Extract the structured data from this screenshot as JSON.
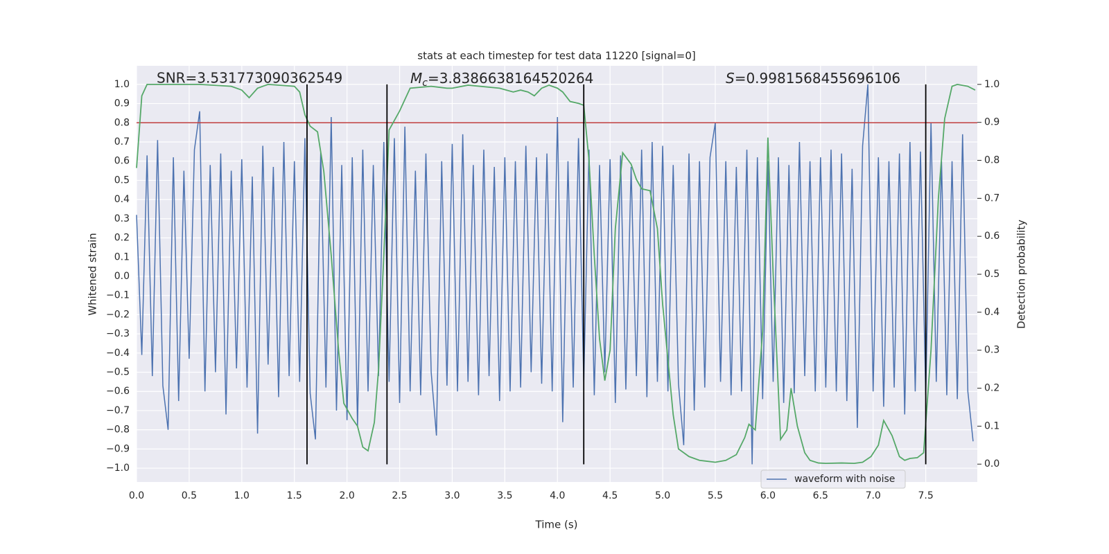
{
  "chart_data": {
    "type": "line",
    "title": "stats at each timestep for test data 11220 [signal=0]",
    "xlabel": "Time (s)",
    "ylabel": "Whitened strain",
    "y2label": "Detection probability",
    "grid": true,
    "legend": "lower right",
    "xlim": [
      0,
      7.99
    ],
    "ylim": [
      -1.072,
      1.097
    ],
    "y2lim": [
      -0.047,
      1.049
    ],
    "xticks": [
      {
        "value": 0,
        "label": "0.0"
      },
      0.5,
      {
        "value": 1,
        "label": "1.0"
      },
      1.5,
      {
        "value": 2,
        "label": "2.0"
      },
      2.5,
      {
        "value": 3,
        "label": "3.0"
      },
      3.5,
      {
        "value": 4,
        "label": "4.0"
      },
      4.5,
      {
        "value": 5,
        "label": "5.0"
      },
      5.5,
      {
        "value": 6,
        "label": "6.0"
      },
      6.5,
      {
        "value": 7,
        "label": "7.0"
      },
      7.5
    ],
    "yticks": [
      {
        "value": -1,
        "label": "−1.0"
      },
      {
        "value": -0.9,
        "label": "−0.9"
      },
      {
        "value": -0.8,
        "label": "−0.8"
      },
      {
        "value": -0.7,
        "label": "−0.7"
      },
      {
        "value": -0.6,
        "label": "−0.6"
      },
      {
        "value": -0.5,
        "label": "−0.5"
      },
      {
        "value": -0.4,
        "label": "−0.4"
      },
      {
        "value": -0.3,
        "label": "−0.3"
      },
      {
        "value": -0.2,
        "label": "−0.2"
      },
      {
        "value": -0.1,
        "label": "−0.1"
      },
      {
        "value": 0,
        "label": "0.0"
      },
      0.1,
      0.2,
      0.3,
      0.4,
      0.5,
      0.6,
      0.7,
      0.8,
      0.9,
      {
        "value": 1,
        "label": "1.0"
      }
    ],
    "y2ticks": [
      {
        "value": 0,
        "label": "0.0"
      },
      0.1,
      0.2,
      0.3,
      0.4,
      0.5,
      0.6,
      0.7,
      0.8,
      0.9,
      {
        "value": 1,
        "label": "1.0"
      }
    ],
    "annotations": [
      "SNR=3.531773090362549",
      {
        "symbol": "M",
        "subscript": "c",
        "text": "=3.8386638164520264"
      },
      {
        "symbol": "S",
        "text": "=0.9981568455696106"
      }
    ],
    "threshold": {
      "value": 0.8,
      "color": "#c03d3e"
    },
    "vlines": {
      "x": [
        1.62,
        2.38,
        4.25,
        7.5
      ],
      "ymin": -0.98,
      "ymax": 1.0,
      "color": "#000000"
    },
    "series": [
      {
        "name": "waveform with noise",
        "color": "#4c72b0",
        "x": [
          0,
          0.05,
          0.1,
          0.15,
          0.2,
          0.25,
          0.3,
          0.35,
          0.4,
          0.45,
          0.5,
          0.55,
          0.6,
          0.65,
          0.7,
          0.75,
          0.8,
          0.85,
          0.9,
          0.95,
          1,
          1.05,
          1.1,
          1.15,
          1.2,
          1.25,
          1.3,
          1.35,
          1.4,
          1.45,
          1.5,
          1.55,
          1.6,
          1.65,
          1.7,
          1.75,
          1.8,
          1.85,
          1.9,
          1.95,
          2,
          2.05,
          2.1,
          2.15,
          2.2,
          2.25,
          2.3,
          2.35,
          2.4,
          2.45,
          2.5,
          2.55,
          2.6,
          2.65,
          2.7,
          2.75,
          2.8,
          2.85,
          2.9,
          2.95,
          3,
          3.05,
          3.1,
          3.15,
          3.2,
          3.25,
          3.3,
          3.35,
          3.4,
          3.45,
          3.5,
          3.55,
          3.6,
          3.65,
          3.7,
          3.75,
          3.8,
          3.85,
          3.9,
          3.95,
          4,
          4.05,
          4.1,
          4.15,
          4.2,
          4.25,
          4.3,
          4.35,
          4.4,
          4.45,
          4.5,
          4.55,
          4.6,
          4.65,
          4.7,
          4.75,
          4.8,
          4.85,
          4.9,
          4.95,
          5,
          5.05,
          5.1,
          5.15,
          5.2,
          5.25,
          5.3,
          5.35,
          5.4,
          5.45,
          5.5,
          5.55,
          5.6,
          5.65,
          5.7,
          5.75,
          5.8,
          5.85,
          5.9,
          5.95,
          6,
          6.05,
          6.1,
          6.15,
          6.2,
          6.25,
          6.3,
          6.35,
          6.4,
          6.45,
          6.5,
          6.55,
          6.6,
          6.65,
          6.7,
          6.75,
          6.8,
          6.85,
          6.9,
          6.95,
          7,
          7.05,
          7.1,
          7.15,
          7.2,
          7.25,
          7.3,
          7.35,
          7.4,
          7.45,
          7.5,
          7.55,
          7.6,
          7.65,
          7.7,
          7.75,
          7.8,
          7.85,
          7.9,
          7.95
        ],
        "values": [
          0.32,
          -0.41,
          0.63,
          -0.52,
          0.71,
          -0.57,
          -0.8,
          0.62,
          -0.65,
          0.55,
          -0.43,
          0.66,
          0.86,
          -0.6,
          0.58,
          -0.5,
          0.64,
          -0.72,
          0.55,
          -0.48,
          0.61,
          -0.58,
          0.52,
          -0.82,
          0.68,
          -0.46,
          0.57,
          -0.63,
          0.7,
          -0.52,
          0.6,
          -0.55,
          0.72,
          -0.61,
          -0.85,
          0.65,
          -0.58,
          0.83,
          -0.7,
          0.58,
          -0.75,
          0.62,
          -0.78,
          0.66,
          -0.6,
          0.58,
          -0.52,
          0.7,
          -0.55,
          0.72,
          -0.66,
          0.78,
          -0.6,
          0.55,
          -0.62,
          0.64,
          -0.5,
          -0.83,
          0.6,
          -0.57,
          0.69,
          -0.6,
          0.74,
          -0.55,
          0.58,
          -0.62,
          0.66,
          -0.52,
          0.57,
          -0.65,
          0.62,
          -0.6,
          0.6,
          -0.58,
          0.68,
          -0.5,
          0.62,
          -0.56,
          0.64,
          -0.6,
          0.83,
          -0.76,
          0.6,
          -0.58,
          0.72,
          -0.55,
          0.66,
          -0.62,
          0.58,
          -0.5,
          0.61,
          -0.66,
          0.63,
          -0.59,
          0.57,
          -0.52,
          0.66,
          -0.63,
          0.7,
          -0.55,
          0.68,
          -0.6,
          0.58,
          -0.56,
          -0.88,
          0.64,
          -0.7,
          0.6,
          -0.58,
          0.62,
          0.8,
          -0.55,
          0.6,
          -0.62,
          0.57,
          -0.6,
          0.66,
          -0.98,
          0.62,
          -0.64,
          0.6,
          -0.55,
          0.62,
          -0.66,
          0.58,
          -0.61,
          0.7,
          -0.52,
          0.6,
          -0.6,
          0.62,
          -0.58,
          0.66,
          -0.6,
          0.64,
          -0.65,
          0.56,
          -0.79,
          0.68,
          1.0,
          -0.6,
          0.62,
          -0.68,
          0.6,
          -0.58,
          0.64,
          -0.72,
          0.7,
          -0.6,
          0.65,
          -0.62,
          0.8,
          -0.55,
          0.6,
          -0.62,
          0.6,
          -0.64,
          0.74,
          -0.6,
          -0.86
        ]
      },
      {
        "color": "#55a868",
        "axis": "y2",
        "x": [
          0,
          0.05,
          0.1,
          0.3,
          0.6,
          0.9,
          1,
          1.07,
          1.15,
          1.25,
          1.5,
          1.55,
          1.6,
          1.65,
          1.72,
          1.78,
          1.85,
          1.92,
          1.97,
          2.05,
          2.1,
          2.15,
          2.2,
          2.26,
          2.3,
          2.35,
          2.4,
          2.5,
          2.55,
          2.6,
          2.8,
          2.95,
          3,
          3.15,
          3.45,
          3.58,
          3.65,
          3.72,
          3.78,
          3.85,
          3.92,
          4,
          4.05,
          4.12,
          4.2,
          4.25,
          4.3,
          4.35,
          4.4,
          4.45,
          4.5,
          4.55,
          4.62,
          4.7,
          4.75,
          4.8,
          4.88,
          4.95,
          5,
          5.1,
          5.15,
          5.25,
          5.35,
          5.5,
          5.6,
          5.7,
          5.78,
          5.82,
          5.88,
          5.95,
          6,
          6.05,
          6.12,
          6.18,
          6.22,
          6.28,
          6.35,
          6.4,
          6.48,
          6.55,
          6.7,
          6.82,
          6.9,
          6.98,
          7.05,
          7.1,
          7.18,
          7.25,
          7.3,
          7.35,
          7.42,
          7.48,
          7.55,
          7.62,
          7.68,
          7.75,
          7.8,
          7.9,
          7.97
        ],
        "values": [
          0.78,
          0.97,
          1.0,
          1.0,
          1.0,
          0.995,
          0.985,
          0.965,
          0.99,
          1.0,
          0.995,
          0.98,
          0.92,
          0.89,
          0.875,
          0.77,
          0.55,
          0.3,
          0.16,
          0.12,
          0.1,
          0.045,
          0.035,
          0.11,
          0.25,
          0.55,
          0.88,
          0.93,
          0.96,
          0.99,
          0.995,
          0.99,
          0.99,
          0.998,
          0.99,
          0.98,
          0.985,
          0.98,
          0.97,
          0.99,
          0.998,
          0.99,
          0.98,
          0.955,
          0.95,
          0.945,
          0.8,
          0.55,
          0.33,
          0.22,
          0.3,
          0.62,
          0.82,
          0.79,
          0.75,
          0.725,
          0.72,
          0.62,
          0.42,
          0.13,
          0.04,
          0.02,
          0.01,
          0.005,
          0.01,
          0.025,
          0.07,
          0.105,
          0.09,
          0.35,
          0.86,
          0.5,
          0.065,
          0.09,
          0.2,
          0.1,
          0.03,
          0.01,
          0.003,
          0.002,
          0.003,
          0.002,
          0.005,
          0.02,
          0.05,
          0.115,
          0.075,
          0.02,
          0.01,
          0.015,
          0.017,
          0.03,
          0.3,
          0.7,
          0.91,
          0.995,
          1.0,
          0.995,
          0.985
        ]
      }
    ]
  }
}
